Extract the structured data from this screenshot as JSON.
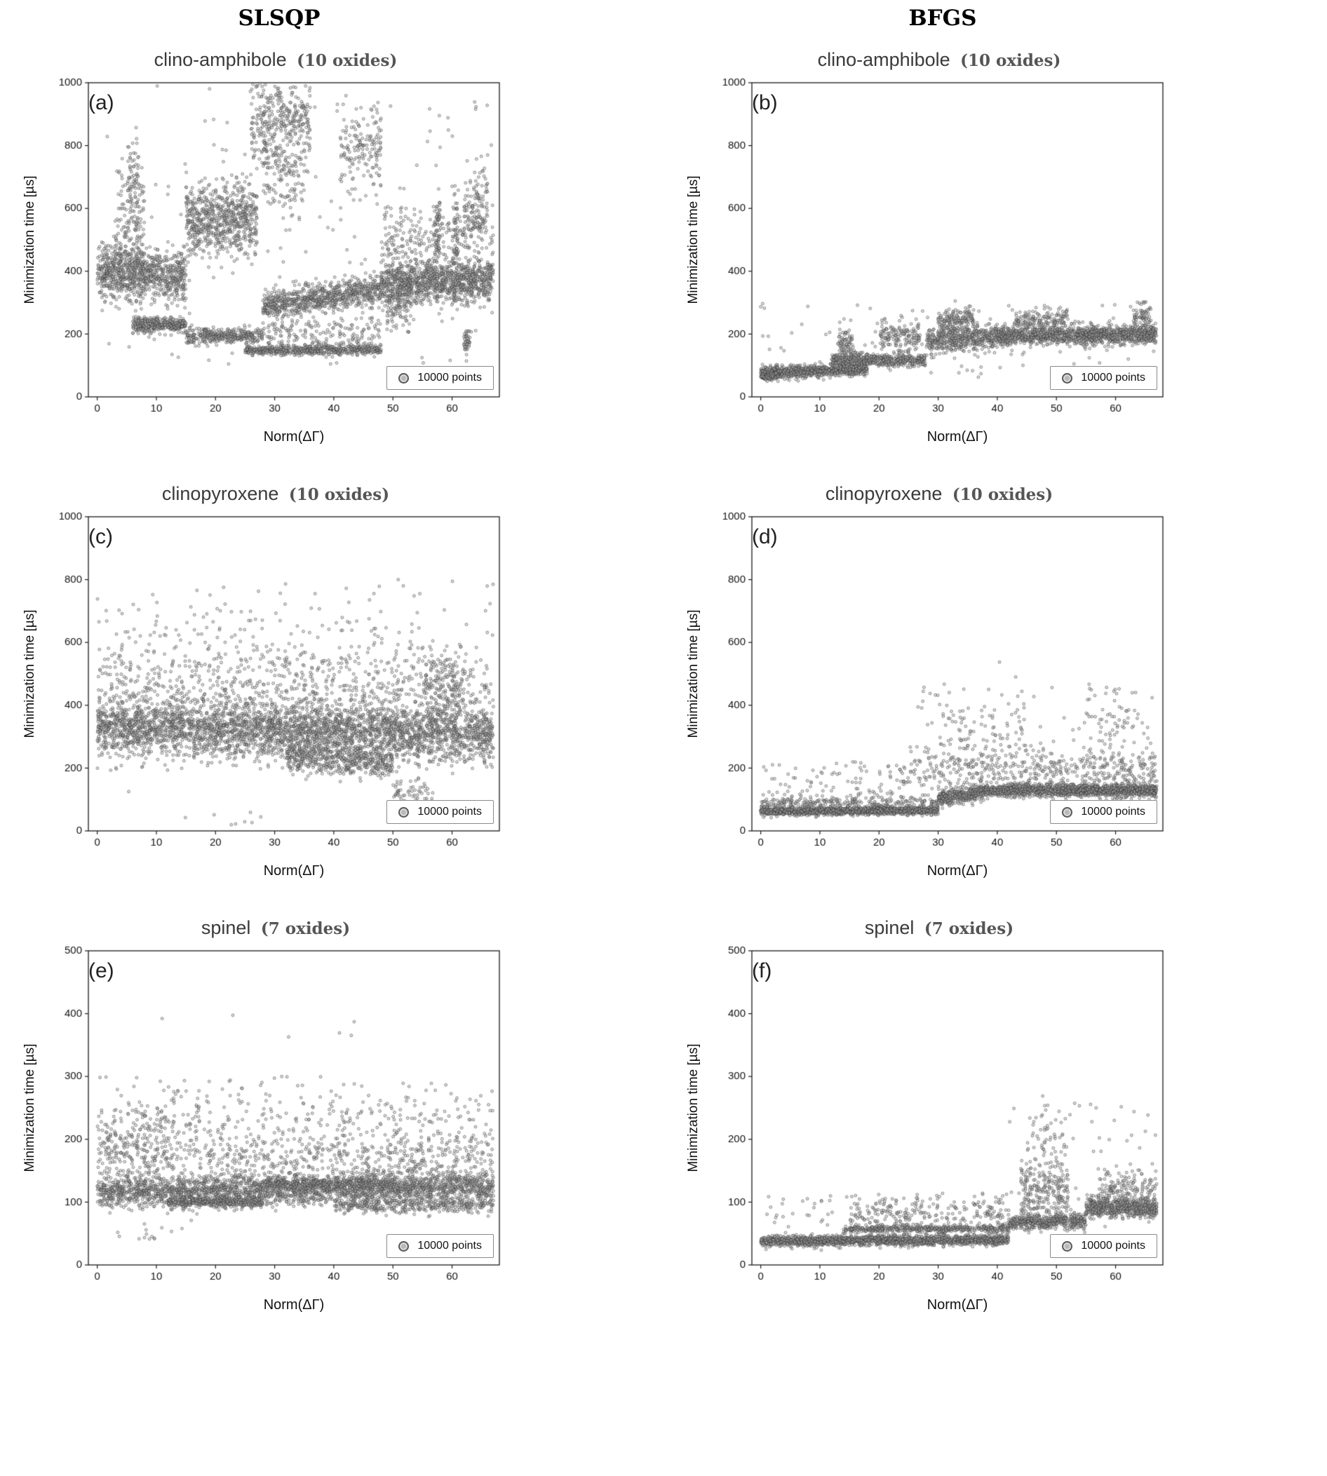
{
  "headers": [
    "SLSQP",
    "BFGS"
  ],
  "chart_data": [
    {
      "type": "scatter",
      "tag": "(a)",
      "title": "clino-amphibole",
      "subtitle": "(10 oxides)",
      "xlabel": "Norm(ΔΓ)",
      "ylabel": "Minimization time [µs]",
      "legend": "10000 points",
      "xlim": [
        -1.5,
        68
      ],
      "ylim": [
        0,
        1000
      ],
      "xticks": [
        0,
        10,
        20,
        30,
        40,
        50,
        60
      ],
      "yticks": [
        0,
        200,
        400,
        600,
        800,
        1000
      ],
      "clusters": [
        [
          0,
          15,
          400,
          380,
          40,
          900,
          "g"
        ],
        [
          3,
          8,
          550,
          550,
          90,
          150,
          "g"
        ],
        [
          5,
          7,
          700,
          700,
          60,
          60,
          "g"
        ],
        [
          6,
          15,
          230,
          230,
          12,
          350,
          "g"
        ],
        [
          15,
          27,
          560,
          570,
          60,
          700,
          "g"
        ],
        [
          15,
          28,
          195,
          195,
          12,
          350,
          "g"
        ],
        [
          26,
          36,
          870,
          880,
          70,
          350,
          "g"
        ],
        [
          28,
          35,
          700,
          700,
          60,
          120,
          "g"
        ],
        [
          25,
          48,
          148,
          150,
          8,
          600,
          "g"
        ],
        [
          28,
          48,
          290,
          340,
          25,
          800,
          "g"
        ],
        [
          28,
          48,
          200,
          200,
          30,
          180,
          "g"
        ],
        [
          41,
          48,
          800,
          790,
          70,
          160,
          "g"
        ],
        [
          48,
          67,
          360,
          370,
          35,
          1100,
          "g"
        ],
        [
          48,
          67,
          500,
          520,
          60,
          250,
          "g"
        ],
        [
          49,
          53,
          280,
          300,
          40,
          120,
          "g"
        ],
        [
          57,
          58,
          450,
          620,
          0,
          60,
          "u"
        ],
        [
          60,
          61,
          420,
          650,
          0,
          50,
          "u"
        ],
        [
          62,
          63,
          150,
          210,
          0,
          40,
          "u"
        ],
        [
          62,
          66,
          560,
          640,
          60,
          120,
          "g"
        ],
        [
          0,
          67,
          100,
          1000,
          0,
          150,
          "u"
        ]
      ]
    },
    {
      "type": "scatter",
      "tag": "(b)",
      "title": "clino-amphibole",
      "subtitle": "(10 oxides)",
      "xlabel": "Norm(ΔΓ)",
      "ylabel": "Minimization time [µs]",
      "legend": "10000 points",
      "xlim": [
        -1.5,
        68
      ],
      "ylim": [
        0,
        1000
      ],
      "xticks": [
        0,
        10,
        20,
        30,
        40,
        50,
        60
      ],
      "yticks": [
        0,
        200,
        400,
        600,
        800,
        1000
      ],
      "clusters": [
        [
          0,
          18,
          75,
          90,
          10,
          900,
          "g"
        ],
        [
          0,
          3,
          65,
          70,
          6,
          150,
          "g"
        ],
        [
          12,
          28,
          120,
          115,
          10,
          500,
          "g"
        ],
        [
          13,
          16,
          170,
          160,
          25,
          80,
          "g"
        ],
        [
          20,
          27,
          200,
          190,
          25,
          150,
          "g"
        ],
        [
          28,
          40,
          175,
          195,
          20,
          500,
          "g"
        ],
        [
          30,
          36,
          240,
          250,
          18,
          150,
          "g"
        ],
        [
          40,
          67,
          195,
          200,
          15,
          1300,
          "g"
        ],
        [
          43,
          52,
          240,
          250,
          18,
          150,
          "g"
        ],
        [
          63,
          66,
          240,
          260,
          25,
          80,
          "g"
        ],
        [
          0,
          67,
          60,
          300,
          0,
          120,
          "u"
        ]
      ]
    },
    {
      "type": "scatter",
      "tag": "(c)",
      "title": "clinopyroxene",
      "subtitle": "(10 oxides)",
      "xlabel": "Norm(ΔΓ)",
      "ylabel": "Minimization time [µs]",
      "legend": "10000 points",
      "xlim": [
        -1.5,
        68
      ],
      "ylim": [
        0,
        1000
      ],
      "xticks": [
        0,
        10,
        20,
        30,
        40,
        50,
        60
      ],
      "yticks": [
        0,
        200,
        400,
        600,
        800,
        1000
      ],
      "clusters": [
        [
          0,
          67,
          330,
          310,
          45,
          3500,
          "g"
        ],
        [
          0,
          67,
          470,
          450,
          60,
          600,
          "g"
        ],
        [
          0,
          55,
          600,
          580,
          80,
          200,
          "g"
        ],
        [
          32,
          50,
          235,
          215,
          25,
          500,
          "g"
        ],
        [
          50,
          57,
          120,
          120,
          25,
          60,
          "g"
        ],
        [
          55,
          62,
          480,
          450,
          60,
          150,
          "g"
        ],
        [
          10,
          30,
          30,
          30,
          20,
          8,
          "g"
        ],
        [
          0,
          67,
          200,
          800,
          0,
          120,
          "u"
        ]
      ]
    },
    {
      "type": "scatter",
      "tag": "(d)",
      "title": "clinopyroxene",
      "subtitle": "(10 oxides)",
      "xlabel": "Norm(ΔΓ)",
      "ylabel": "Minimization time [µs]",
      "legend": "10000 points",
      "xlim": [
        -1.5,
        68
      ],
      "ylim": [
        0,
        1000
      ],
      "xticks": [
        0,
        10,
        20,
        30,
        40,
        50,
        60
      ],
      "yticks": [
        0,
        200,
        400,
        600,
        800,
        1000
      ],
      "clusters": [
        [
          0,
          30,
          63,
          65,
          6,
          1500,
          "g"
        ],
        [
          0,
          30,
          85,
          90,
          12,
          300,
          "g"
        ],
        [
          30,
          38,
          100,
          125,
          12,
          400,
          "g"
        ],
        [
          38,
          67,
          130,
          128,
          10,
          1500,
          "g"
        ],
        [
          25,
          67,
          200,
          190,
          35,
          450,
          "g"
        ],
        [
          30,
          45,
          320,
          330,
          60,
          90,
          "g"
        ],
        [
          55,
          66,
          330,
          320,
          70,
          70,
          "g"
        ],
        [
          0,
          25,
          90,
          220,
          0,
          100,
          "u"
        ],
        [
          25,
          67,
          150,
          460,
          0,
          80,
          "u"
        ]
      ]
    },
    {
      "type": "scatter",
      "tag": "(e)",
      "title": "spinel",
      "subtitle": "(7 oxides)",
      "xlabel": "Norm(ΔΓ)",
      "ylabel": "Minimization time [µs]",
      "legend": "10000 points",
      "xlim": [
        -1.5,
        68
      ],
      "ylim": [
        0,
        500
      ],
      "xticks": [
        0,
        10,
        20,
        30,
        40,
        50,
        60
      ],
      "yticks": [
        0,
        100,
        200,
        300,
        400,
        500
      ],
      "clusters": [
        [
          0,
          67,
          115,
          125,
          12,
          2600,
          "g"
        ],
        [
          12,
          28,
          100,
          100,
          4,
          400,
          "g"
        ],
        [
          28,
          50,
          130,
          130,
          5,
          300,
          "g"
        ],
        [
          0,
          67,
          170,
          170,
          25,
          700,
          "g"
        ],
        [
          0,
          67,
          230,
          230,
          30,
          250,
          "g"
        ],
        [
          0,
          12,
          200,
          210,
          25,
          120,
          "g"
        ],
        [
          8,
          45,
          380,
          390,
          15,
          6,
          "g"
        ],
        [
          1,
          16,
          50,
          50,
          10,
          15,
          "g"
        ],
        [
          40,
          67,
          95,
          95,
          6,
          350,
          "g"
        ],
        [
          0,
          67,
          140,
          300,
          0,
          120,
          "u"
        ]
      ]
    },
    {
      "type": "scatter",
      "tag": "(f)",
      "title": "spinel",
      "subtitle": "(7 oxides)",
      "xlabel": "Norm(ΔΓ)",
      "ylabel": "Minimization time [µs]",
      "legend": "10000 points",
      "xlim": [
        -1.5,
        68
      ],
      "ylim": [
        0,
        500
      ],
      "xticks": [
        0,
        10,
        20,
        30,
        40,
        50,
        60
      ],
      "yticks": [
        0,
        100,
        200,
        300,
        400,
        500
      ],
      "clusters": [
        [
          0,
          42,
          38,
          40,
          4,
          1800,
          "g"
        ],
        [
          14,
          42,
          57,
          58,
          3,
          500,
          "g"
        ],
        [
          42,
          55,
          68,
          70,
          6,
          500,
          "g"
        ],
        [
          55,
          67,
          92,
          90,
          8,
          600,
          "g"
        ],
        [
          44,
          52,
          120,
          115,
          25,
          250,
          "g"
        ],
        [
          45,
          50,
          200,
          190,
          30,
          40,
          "g"
        ],
        [
          15,
          42,
          80,
          85,
          12,
          200,
          "g"
        ],
        [
          57,
          67,
          120,
          125,
          15,
          150,
          "g"
        ],
        [
          0,
          42,
          60,
          110,
          0,
          80,
          "u"
        ],
        [
          42,
          67,
          100,
          260,
          0,
          60,
          "u"
        ],
        [
          48,
          50,
          250,
          255,
          5,
          3,
          "g"
        ]
      ]
    }
  ]
}
